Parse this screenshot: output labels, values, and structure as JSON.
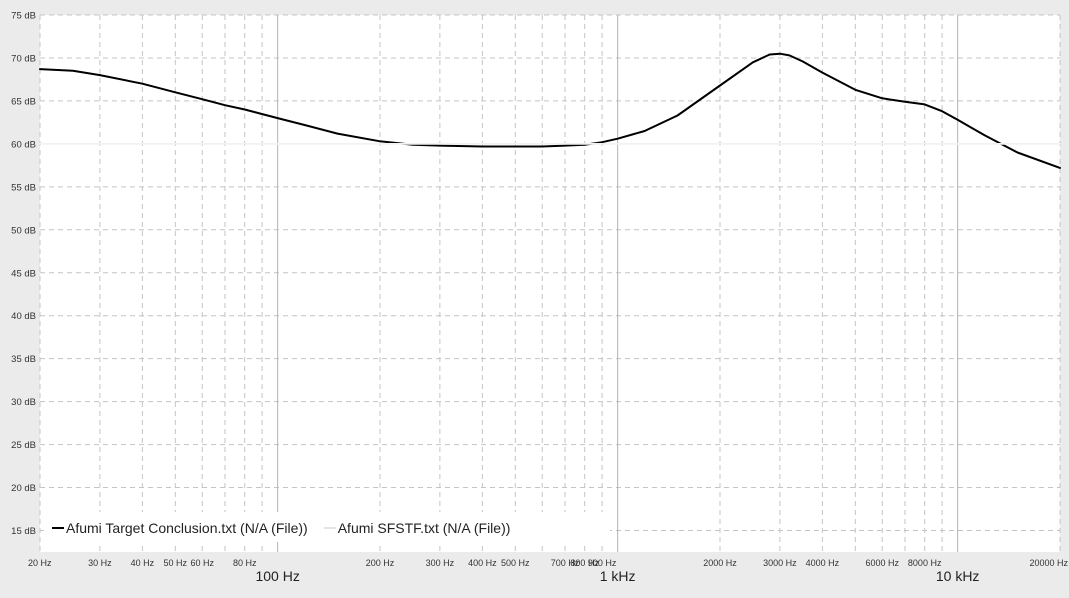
{
  "chart_data": {
    "type": "line",
    "xscale": "log",
    "xlim": [
      20,
      20000
    ],
    "ylim": [
      12.5,
      75
    ],
    "grid": true,
    "legend_position": "bottom-left",
    "y_ticks": [
      {
        "value": 75,
        "label": "75 dB"
      },
      {
        "value": 70,
        "label": "70 dB"
      },
      {
        "value": 65,
        "label": "65 dB"
      },
      {
        "value": 60,
        "label": "60 dB"
      },
      {
        "value": 55,
        "label": "55 dB"
      },
      {
        "value": 50,
        "label": "50 dB"
      },
      {
        "value": 45,
        "label": "45 dB"
      },
      {
        "value": 40,
        "label": "40 dB"
      },
      {
        "value": 35,
        "label": "35 dB"
      },
      {
        "value": 30,
        "label": "30 dB"
      },
      {
        "value": 25,
        "label": "25 dB"
      },
      {
        "value": 20,
        "label": "20 dB"
      },
      {
        "value": 15,
        "label": "15 dB"
      }
    ],
    "x_minor_ticks": [
      {
        "value": 20,
        "label": "20 Hz"
      },
      {
        "value": 30,
        "label": "30 Hz"
      },
      {
        "value": 40,
        "label": "40 Hz"
      },
      {
        "value": 50,
        "label": "50 Hz"
      },
      {
        "value": 60,
        "label": "60 Hz"
      },
      {
        "value": 80,
        "label": "80 Hz"
      },
      {
        "value": 200,
        "label": "200 Hz"
      },
      {
        "value": 300,
        "label": "300 Hz"
      },
      {
        "value": 400,
        "label": "400 Hz"
      },
      {
        "value": 500,
        "label": "500 Hz"
      },
      {
        "value": 700,
        "label": "700 Hz"
      },
      {
        "value": 800,
        "label": "800 Hz"
      },
      {
        "value": 900,
        "label": "900 Hz"
      },
      {
        "value": 2000,
        "label": "2000 Hz"
      },
      {
        "value": 3000,
        "label": "3000 Hz"
      },
      {
        "value": 4000,
        "label": "4000 Hz"
      },
      {
        "value": 6000,
        "label": "6000 Hz"
      },
      {
        "value": 8000,
        "label": "8000 Hz"
      },
      {
        "value": 20000,
        "label": "20000 Hz"
      }
    ],
    "x_major_ticks": [
      {
        "value": 100,
        "label": "100 Hz"
      },
      {
        "value": 1000,
        "label": "1 kHz"
      },
      {
        "value": 10000,
        "label": "10 kHz"
      }
    ],
    "series": [
      {
        "name": "Afumi Target Conclusion.txt (N/A (File))",
        "color": "#000000",
        "x": [
          20,
          25,
          30,
          40,
          50,
          60,
          70,
          80,
          100,
          120,
          150,
          200,
          250,
          300,
          400,
          500,
          600,
          700,
          800,
          900,
          1000,
          1200,
          1500,
          2000,
          2500,
          2800,
          3000,
          3200,
          3500,
          4000,
          5000,
          6000,
          7000,
          8000,
          9000,
          10000,
          12000,
          15000,
          20000
        ],
        "y": [
          68.7,
          68.5,
          68.0,
          67.0,
          66.0,
          65.2,
          64.5,
          64.0,
          63.0,
          62.2,
          61.2,
          60.3,
          59.9,
          59.8,
          59.7,
          59.7,
          59.7,
          59.8,
          59.9,
          60.2,
          60.6,
          61.5,
          63.3,
          66.8,
          69.5,
          70.4,
          70.5,
          70.3,
          69.6,
          68.3,
          66.3,
          65.3,
          64.9,
          64.6,
          63.8,
          62.8,
          61.0,
          59.0,
          57.2
        ]
      },
      {
        "name": "Afumi SFSTF.txt (N/A (File))",
        "color": "#f2f2f2",
        "x": [
          20,
          20000
        ],
        "y": [
          60,
          60
        ]
      }
    ]
  }
}
